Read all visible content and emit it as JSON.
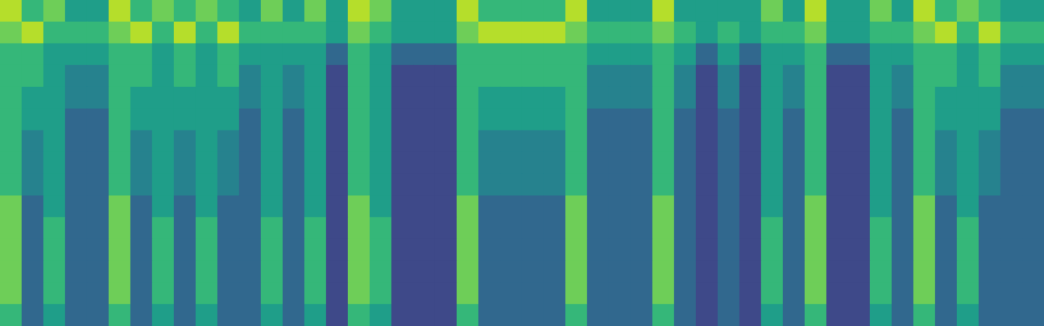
{
  "chart_data": {
    "type": "heatmap",
    "tick_labels": false,
    "grid": false,
    "value_range": [
      0,
      9
    ],
    "cells": [
      [
        8,
        6,
        7,
        5,
        5,
        8,
        6,
        7,
        6,
        7,
        6,
        5,
        7,
        5,
        7,
        5,
        8,
        7,
        5,
        5,
        5,
        8,
        6,
        6,
        6,
        6,
        8,
        5,
        5,
        5,
        8,
        5,
        5,
        5,
        5,
        7,
        5,
        8,
        5,
        5,
        7,
        5,
        8,
        6,
        7,
        6,
        5,
        5
      ],
      [
        7,
        8,
        6,
        6,
        6,
        7,
        8,
        6,
        8,
        6,
        8,
        6,
        6,
        6,
        6,
        5,
        7,
        6,
        5,
        5,
        5,
        7,
        8,
        8,
        8,
        8,
        7,
        6,
        6,
        6,
        7,
        6,
        5,
        6,
        5,
        6,
        6,
        7,
        5,
        5,
        6,
        6,
        7,
        8,
        6,
        8,
        6,
        6
      ],
      [
        6,
        6,
        5,
        5,
        5,
        6,
        6,
        5,
        6,
        5,
        6,
        5,
        5,
        5,
        5,
        3,
        6,
        5,
        3,
        3,
        3,
        6,
        6,
        6,
        6,
        6,
        6,
        5,
        5,
        5,
        6,
        5,
        3,
        5,
        3,
        5,
        5,
        6,
        3,
        3,
        5,
        5,
        6,
        6,
        5,
        6,
        5,
        5
      ],
      [
        6,
        6,
        5,
        4,
        4,
        6,
        6,
        5,
        6,
        5,
        6,
        4,
        5,
        4,
        5,
        2,
        6,
        5,
        2,
        2,
        2,
        6,
        6,
        6,
        6,
        6,
        6,
        4,
        4,
        4,
        6,
        4,
        2,
        4,
        2,
        5,
        4,
        6,
        2,
        2,
        5,
        4,
        6,
        6,
        5,
        6,
        4,
        4
      ],
      [
        6,
        5,
        5,
        4,
        4,
        6,
        5,
        5,
        5,
        5,
        5,
        4,
        5,
        4,
        5,
        2,
        6,
        5,
        2,
        2,
        2,
        6,
        5,
        5,
        5,
        5,
        6,
        4,
        4,
        4,
        6,
        4,
        2,
        4,
        2,
        5,
        4,
        6,
        2,
        2,
        5,
        4,
        6,
        5,
        5,
        5,
        4,
        4
      ],
      [
        6,
        5,
        5,
        3,
        3,
        6,
        5,
        5,
        5,
        5,
        5,
        3,
        5,
        3,
        5,
        2,
        6,
        5,
        2,
        2,
        2,
        6,
        5,
        5,
        5,
        5,
        6,
        3,
        3,
        3,
        6,
        3,
        2,
        3,
        2,
        5,
        3,
        6,
        2,
        2,
        5,
        3,
        6,
        5,
        5,
        5,
        3,
        3
      ],
      [
        6,
        4,
        5,
        3,
        3,
        6,
        4,
        5,
        4,
        5,
        4,
        3,
        5,
        3,
        5,
        2,
        6,
        5,
        2,
        2,
        2,
        6,
        4,
        4,
        4,
        4,
        6,
        3,
        3,
        3,
        6,
        3,
        2,
        3,
        2,
        5,
        3,
        6,
        2,
        2,
        5,
        3,
        6,
        4,
        5,
        4,
        3,
        3
      ],
      [
        6,
        4,
        5,
        3,
        3,
        6,
        4,
        5,
        4,
        5,
        4,
        3,
        5,
        3,
        5,
        2,
        6,
        5,
        2,
        2,
        2,
        6,
        4,
        4,
        4,
        4,
        6,
        3,
        3,
        3,
        6,
        3,
        2,
        3,
        2,
        5,
        3,
        6,
        2,
        2,
        5,
        3,
        6,
        4,
        5,
        4,
        3,
        3
      ],
      [
        6,
        4,
        5,
        3,
        3,
        6,
        4,
        5,
        4,
        5,
        4,
        3,
        5,
        3,
        5,
        2,
        6,
        5,
        2,
        2,
        2,
        6,
        4,
        4,
        4,
        4,
        6,
        3,
        3,
        3,
        6,
        3,
        2,
        3,
        2,
        5,
        3,
        6,
        2,
        2,
        5,
        3,
        6,
        4,
        5,
        4,
        3,
        3
      ],
      [
        7,
        3,
        5,
        3,
        3,
        7,
        3,
        5,
        3,
        5,
        3,
        3,
        5,
        3,
        5,
        2,
        7,
        5,
        2,
        2,
        2,
        7,
        3,
        3,
        3,
        3,
        7,
        3,
        3,
        3,
        7,
        3,
        2,
        3,
        2,
        5,
        3,
        7,
        2,
        2,
        5,
        3,
        7,
        3,
        5,
        3,
        3,
        3
      ],
      [
        7,
        3,
        6,
        3,
        3,
        7,
        3,
        6,
        3,
        6,
        3,
        3,
        6,
        3,
        6,
        2,
        7,
        6,
        2,
        2,
        2,
        7,
        3,
        3,
        3,
        3,
        7,
        3,
        3,
        3,
        7,
        3,
        2,
        3,
        2,
        6,
        3,
        7,
        2,
        2,
        6,
        3,
        7,
        3,
        6,
        3,
        3,
        3
      ],
      [
        7,
        3,
        6,
        3,
        3,
        7,
        3,
        6,
        3,
        6,
        3,
        3,
        6,
        3,
        6,
        2,
        7,
        6,
        2,
        2,
        2,
        7,
        3,
        3,
        3,
        3,
        7,
        3,
        3,
        3,
        7,
        3,
        2,
        3,
        2,
        6,
        3,
        7,
        2,
        2,
        6,
        3,
        7,
        3,
        6,
        3,
        3,
        3
      ],
      [
        7,
        3,
        6,
        3,
        3,
        7,
        3,
        6,
        3,
        6,
        3,
        3,
        6,
        3,
        6,
        2,
        7,
        6,
        2,
        2,
        2,
        7,
        3,
        3,
        3,
        3,
        7,
        3,
        3,
        3,
        7,
        3,
        2,
        3,
        2,
        6,
        3,
        7,
        2,
        2,
        6,
        3,
        7,
        3,
        6,
        3,
        3,
        3
      ],
      [
        7,
        3,
        6,
        3,
        3,
        7,
        3,
        6,
        3,
        6,
        3,
        3,
        6,
        3,
        6,
        2,
        7,
        6,
        2,
        2,
        2,
        7,
        3,
        3,
        3,
        3,
        7,
        3,
        3,
        3,
        7,
        3,
        2,
        3,
        2,
        6,
        3,
        7,
        2,
        2,
        6,
        3,
        7,
        3,
        6,
        3,
        3,
        3
      ],
      [
        6,
        3,
        5,
        3,
        3,
        6,
        3,
        5,
        3,
        5,
        3,
        3,
        5,
        3,
        5,
        2,
        6,
        5,
        2,
        2,
        2,
        6,
        3,
        3,
        3,
        3,
        6,
        3,
        3,
        3,
        6,
        3,
        2,
        3,
        2,
        5,
        3,
        6,
        2,
        2,
        5,
        3,
        6,
        3,
        5,
        3,
        3,
        3
      ]
    ]
  }
}
